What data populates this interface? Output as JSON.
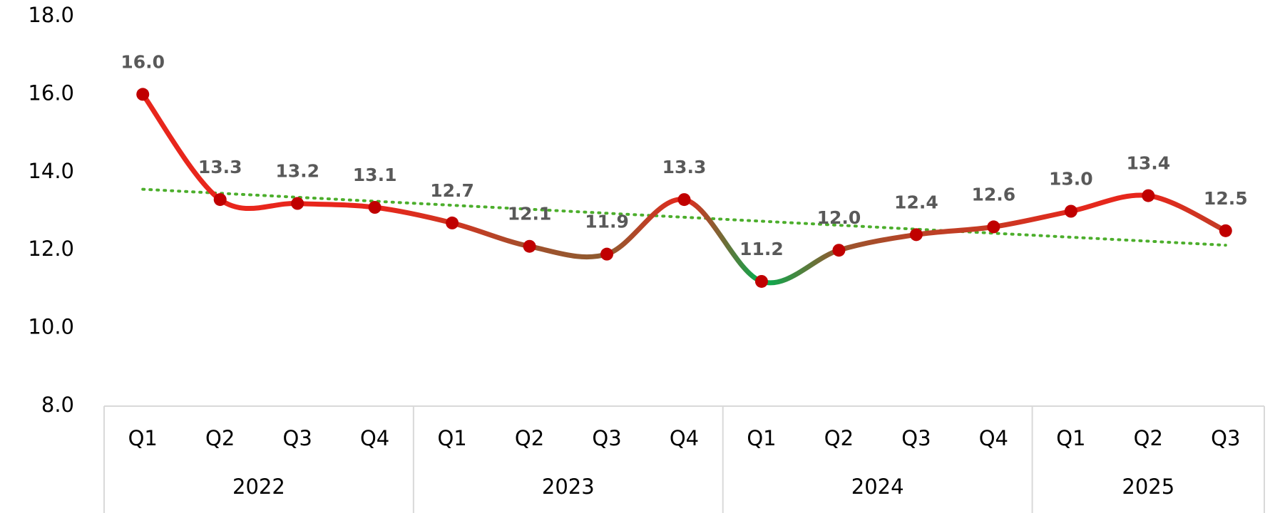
{
  "chart_data": {
    "type": "line",
    "groups": [
      {
        "name": "2022",
        "categories": [
          "Q1",
          "Q2",
          "Q3",
          "Q4"
        ]
      },
      {
        "name": "2023",
        "categories": [
          "Q1",
          "Q2",
          "Q3",
          "Q4"
        ]
      },
      {
        "name": "2024",
        "categories": [
          "Q1",
          "Q2",
          "Q3",
          "Q4"
        ]
      },
      {
        "name": "2025",
        "categories": [
          "Q1",
          "Q2",
          "Q3"
        ]
      }
    ],
    "values": [
      16.0,
      13.3,
      13.2,
      13.1,
      12.7,
      12.1,
      11.9,
      13.3,
      11.2,
      12.0,
      12.4,
      12.6,
      13.0,
      13.4,
      12.5
    ],
    "value_labels": [
      "16.0",
      "13.3",
      "13.2",
      "13.1",
      "12.7",
      "12.1",
      "11.9",
      "13.3",
      "11.2",
      "12.0",
      "12.4",
      "12.6",
      "13.0",
      "13.4",
      "12.5"
    ],
    "ylim": [
      8,
      18
    ],
    "yticks": [
      {
        "value": 8,
        "label": "8.0"
      },
      {
        "value": 10,
        "label": "10.0"
      },
      {
        "value": 12,
        "label": "12.0"
      },
      {
        "value": 14,
        "label": "14.0"
      },
      {
        "value": 16,
        "label": "16.0"
      },
      {
        "value": 18,
        "label": "18.0"
      }
    ],
    "line_colors": [
      "#00b050",
      "#e8261c"
    ],
    "marker_color": "#c00000",
    "trendline": {
      "type": "linear",
      "color": "#4cae2c"
    },
    "smooth": true
  }
}
